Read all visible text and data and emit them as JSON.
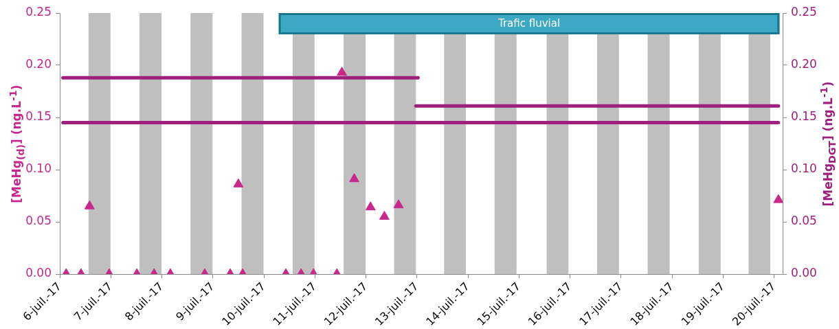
{
  "chart_data": {
    "type": "scatter",
    "ylabel": "[MeHg$_{(d)}$] (ng.L$^{-1}$)",
    "y2label": "[MeHg$_{DGT}$] (ng.L$^{-1}$)",
    "xlim": [
      "--07-06",
      "--07-20T04:00"
    ],
    "xticks": [
      {
        "value": "--07-06",
        "label": "6-juil.-17"
      },
      {
        "value": "--07-07",
        "label": "7-juil.-17"
      },
      {
        "value": "--07-08",
        "label": "8-juil.-17"
      },
      {
        "value": "--07-09",
        "label": "9-juil.-17"
      },
      {
        "value": "--07-10",
        "label": "10-juil.-17"
      },
      {
        "value": "--07-11",
        "label": "11-juil.-17"
      },
      {
        "value": "--07-12",
        "label": "12-juil.-17"
      },
      {
        "value": "--07-13",
        "label": "13-juil.-17"
      },
      {
        "value": "--07-14",
        "label": "14-juil.-17"
      },
      {
        "value": "--07-15",
        "label": "15-juil.-17"
      },
      {
        "value": "--07-16",
        "label": "16-juil.-17"
      },
      {
        "value": "--07-17",
        "label": "17-juil.-17"
      },
      {
        "value": "--07-18",
        "label": "18-juil.-17"
      },
      {
        "value": "--07-19",
        "label": "19-juil.-17"
      },
      {
        "value": "--07-20",
        "label": "20-juil.-17"
      }
    ],
    "ylim": [
      0,
      0.25
    ],
    "yticks": [
      {
        "value": 0,
        "label": "0.00"
      },
      {
        "value": 0.05,
        "label": "0.05"
      },
      {
        "value": 0.1,
        "label": "0.10"
      },
      {
        "value": 0.15,
        "label": "0.15"
      },
      {
        "value": 0.2,
        "label": "0.20"
      },
      {
        "value": 0.25,
        "label": "0.25"
      }
    ],
    "y2lim": [
      0,
      0.25
    ],
    "y2ticks": [
      {
        "value": 0,
        "label": "0.00"
      },
      {
        "value": 0.05,
        "label": "0.05"
      },
      {
        "value": 0.1,
        "label": "0.10"
      },
      {
        "value": 0.15,
        "label": "0.15"
      },
      {
        "value": 0.2,
        "label": "0.20"
      },
      {
        "value": 0.25,
        "label": "0.25"
      }
    ],
    "grid": false,
    "legend": false,
    "marker": "triangle",
    "series": [
      {
        "type": "line",
        "axis": "y2",
        "marker": "none",
        "color": "#9e1f7e",
        "x": [
          "--07-06T01:30",
          "--07-13T00:30"
        ],
        "values": [
          0.188,
          0.188
        ]
      },
      {
        "type": "line",
        "axis": "y2",
        "marker": "none",
        "color": "#9e1f7e",
        "x": [
          "--07-06T01:30",
          "--07-20T02:00"
        ],
        "values": [
          0.145,
          0.145
        ]
      },
      {
        "type": "line",
        "axis": "y2",
        "marker": "none",
        "color": "#9e1f7e",
        "x": [
          "--07-12T23:30",
          "--07-20T02:00"
        ],
        "values": [
          0.161,
          0.161
        ]
      },
      {
        "color": "#c8288c",
        "x": [
          "--07-06T14:00",
          "--07-09T12:00",
          "--07-11T12:40",
          "--07-11T18:30",
          "--07-12T02:10",
          "--07-12T08:40",
          "--07-12T15:20",
          "--07-20T02:00"
        ],
        "values": [
          0.065,
          0.086,
          0.193,
          0.091,
          0.064,
          0.055,
          0.066,
          0.071
        ]
      },
      {
        "color": "#c8288c",
        "x": [
          "--07-06T03:00",
          "--07-06T10:00",
          "--07-06T23:15",
          "--07-07T12:15",
          "--07-07T20:20",
          "--07-08T04:00",
          "--07-08T20:10",
          "--07-09T08:10",
          "--07-09T14:00",
          "--07-10T10:20",
          "--07-10T17:30",
          "--07-10T23:20",
          "--07-11T10:20"
        ],
        "values": [
          0,
          0,
          0,
          0,
          0,
          0,
          0,
          0,
          0,
          0,
          0,
          0,
          0
        ]
      }
    ],
    "bands": [
      {
        "axis": "x",
        "from": "--07-06T13:30",
        "to": "--07-06T23:50",
        "color": "#bfbfbf"
      },
      {
        "axis": "x",
        "from": "--07-07T13:30",
        "to": "--07-07T23:50",
        "color": "#bfbfbf"
      },
      {
        "axis": "x",
        "from": "--07-08T13:30",
        "to": "--07-08T23:50",
        "color": "#bfbfbf"
      },
      {
        "axis": "x",
        "from": "--07-09T13:30",
        "to": "--07-09T23:50",
        "color": "#bfbfbf"
      },
      {
        "axis": "x",
        "from": "--07-10T13:30",
        "to": "--07-10T23:50",
        "color": "#bfbfbf"
      },
      {
        "axis": "x",
        "from": "--07-11T13:30",
        "to": "--07-11T23:50",
        "color": "#bfbfbf"
      },
      {
        "axis": "x",
        "from": "--07-12T13:15",
        "to": "--07-12T23:30",
        "color": "#bfbfbf"
      },
      {
        "axis": "x",
        "from": "--07-13T12:45",
        "to": "--07-13T23:00",
        "color": "#bfbfbf"
      },
      {
        "axis": "x",
        "from": "--07-14T12:30",
        "to": "--07-14T22:50",
        "color": "#bfbfbf"
      },
      {
        "axis": "x",
        "from": "--07-15T13:00",
        "to": "--07-15T23:15",
        "color": "#bfbfbf"
      },
      {
        "axis": "x",
        "from": "--07-16T12:45",
        "to": "--07-16T23:00",
        "color": "#bfbfbf"
      },
      {
        "axis": "x",
        "from": "--07-17T12:30",
        "to": "--07-17T22:50",
        "color": "#bfbfbf"
      },
      {
        "axis": "x",
        "from": "--07-18T12:30",
        "to": "--07-18T22:50",
        "color": "#bfbfbf"
      },
      {
        "axis": "x",
        "from": "--07-19T12:00",
        "to": "--07-19T22:10",
        "color": "#bfbfbf"
      },
      {
        "axis": "x",
        "from": "--07-10T07:00",
        "to": "--07-20T02:30",
        "label": "Trafic fluvial",
        "color": "#3ca8c4"
      }
    ]
  }
}
